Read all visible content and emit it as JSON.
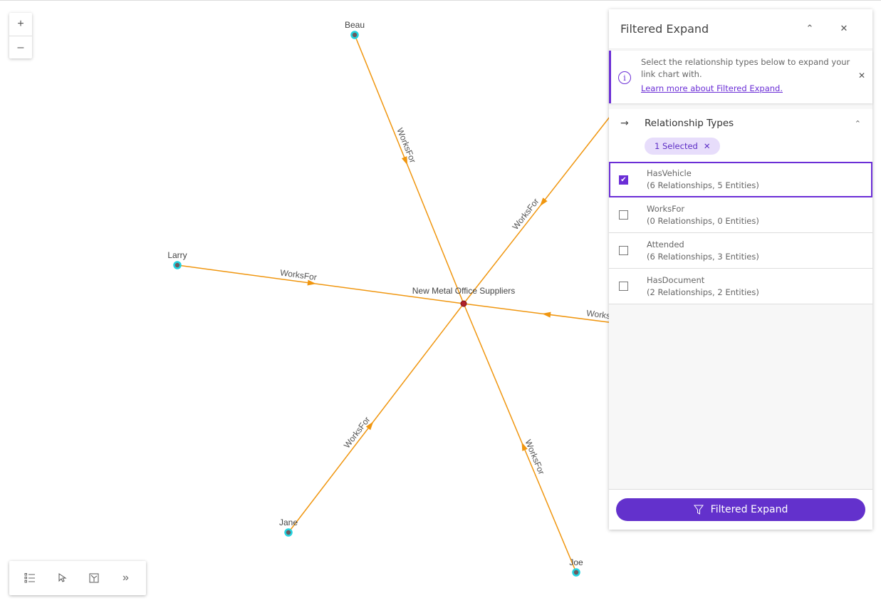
{
  "graph": {
    "center": {
      "label": "New Metal Office Suppliers"
    },
    "nodes": [
      {
        "label": "Beau"
      },
      {
        "label": "Larry"
      },
      {
        "label": "Jane"
      },
      {
        "label": "Joe"
      }
    ],
    "edge_label": "WorksFor",
    "edge_color": "#f0960f",
    "node_color": "#22d3e0",
    "center_color": "#b0202a"
  },
  "zoom": {
    "in": "+",
    "out": "–"
  },
  "toolbar": {
    "items": [
      "list-icon",
      "select-icon",
      "layout-icon",
      "expand-icon"
    ],
    "expand": "»"
  },
  "panel": {
    "title": "Filtered Expand",
    "notice": {
      "text": "Select the relationship types below to expand your link chart with.",
      "link": "Learn more about Filtered Expand."
    },
    "section": {
      "title": "Relationship Types",
      "chip": "1 Selected",
      "items": [
        {
          "name": "HasVehicle",
          "detail": "(6 Relationships, 5 Entities)",
          "checked": true
        },
        {
          "name": "WorksFor",
          "detail": "(0 Relationships, 0 Entities)",
          "checked": false
        },
        {
          "name": "Attended",
          "detail": "(6 Relationships, 3 Entities)",
          "checked": false
        },
        {
          "name": "HasDocument",
          "detail": "(2 Relationships, 2 Entities)",
          "checked": false
        }
      ]
    },
    "button": "Filtered Expand",
    "accent": "#6b2ed6"
  }
}
